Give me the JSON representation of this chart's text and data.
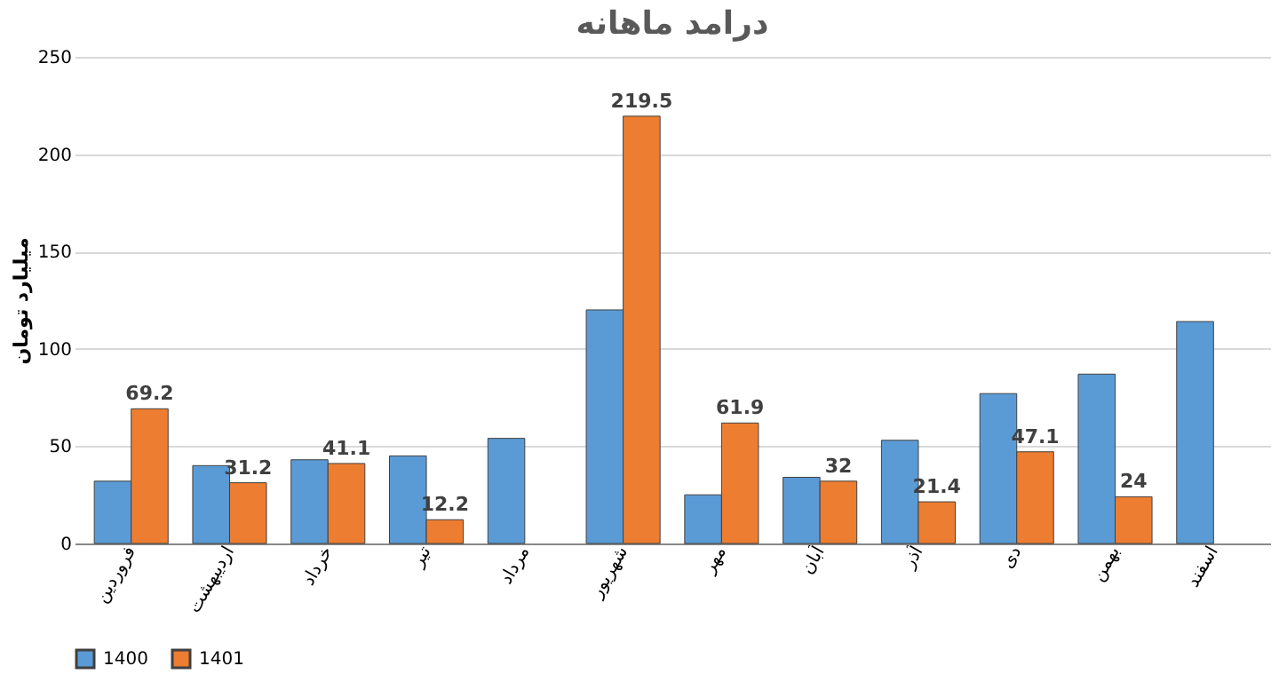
{
  "chart_data": {
    "type": "bar",
    "title": "درامد ماهانه",
    "ylabel": "میلیارد تومان",
    "categories": [
      "فروردین",
      "اردیبهشت",
      "خرداد",
      "تیر",
      "مرداد",
      "شهریور",
      "مهر",
      "آبان",
      "آذر",
      "دی",
      "بهمن",
      "اسفند"
    ],
    "series": [
      {
        "name": "1400",
        "color": "#5b9bd5",
        "values": [
          32,
          40,
          43,
          45,
          54,
          120,
          25,
          34,
          53,
          77,
          87,
          114
        ]
      },
      {
        "name": "1401",
        "color": "#ed7d31",
        "values": [
          69.2,
          31.2,
          41.1,
          12.2,
          null,
          219.5,
          61.9,
          32,
          21.4,
          47.1,
          24,
          null
        ],
        "value_labels": [
          "69.2",
          "31.2",
          "41.1",
          "12.2",
          null,
          "219.5",
          "61.9",
          "32",
          "21.4",
          "47.1",
          "24",
          null
        ]
      }
    ],
    "ylim": [
      0,
      250
    ],
    "yticks": [
      0,
      50,
      100,
      150,
      200,
      250
    ],
    "grid": "y",
    "legend": "bottom"
  }
}
